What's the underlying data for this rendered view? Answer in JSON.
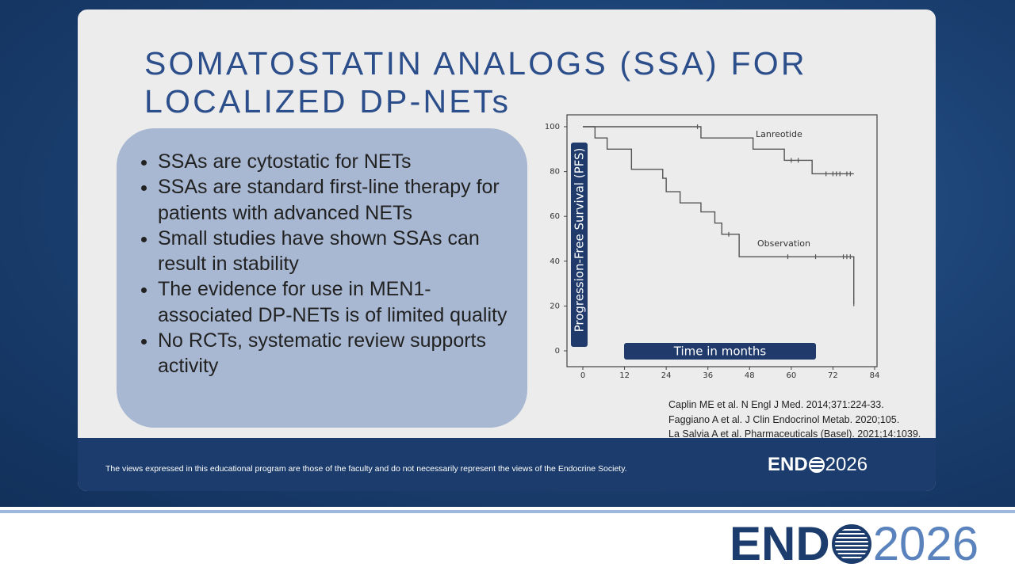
{
  "slide": {
    "title_lines": [
      "SOMATOSTATIN ANALOGS (SSA) FOR",
      "LOCALIZED DP-NETs"
    ],
    "bullets": [
      "SSAs are cytostatic for NETs",
      "SSAs are standard first-line therapy for patients with advanced NETs",
      "Small studies have shown SSAs can result in stability",
      "The evidence for use in MEN1-associated DP-NETs is of limited quality",
      "No RCTs, systematic review supports activity"
    ],
    "references": [
      "Caplin ME et al. N Engl J Med. 2014;371:224-33.",
      "Faggiano A et al. J Clin Endocrinol Metab. 2020;105.",
      "La Salvia A et al. Pharmaceuticals (Basel). 2021;14:1039."
    ],
    "footer": {
      "disclaimer": "The views expressed in this educational program are those of the faculty and do not necessarily represent the views of the Endocrine Society.",
      "logo_left": "END",
      "logo_right": "2026"
    }
  },
  "banner": {
    "logo_left": "END",
    "logo_right": "2026"
  },
  "chart_data": {
    "type": "kaplan-meier",
    "y_label": "Progression-Free Survival (PFS)",
    "x_label": "Time in months",
    "xlim": [
      0,
      84
    ],
    "xticks": [
      0,
      12,
      24,
      36,
      48,
      60,
      72,
      84
    ],
    "ylim": [
      0,
      100
    ],
    "yticks": [
      0,
      20,
      40,
      60,
      80,
      100
    ],
    "series": [
      {
        "name": "Lanreotide",
        "color": "#555555",
        "x": [
          0,
          34,
          49,
          58,
          66,
          78
        ],
        "values": [
          100,
          95,
          90,
          85,
          79,
          79
        ],
        "censor_x": [
          33,
          60,
          62,
          70,
          72,
          73,
          74,
          76,
          77
        ],
        "censor_values": [
          100,
          85,
          85,
          79,
          79,
          79,
          79,
          79,
          79
        ]
      },
      {
        "name": "Observation",
        "color": "#555555",
        "x": [
          0,
          3.5,
          7,
          14,
          23,
          24,
          28,
          34,
          38,
          40,
          45,
          78
        ],
        "values": [
          100,
          95,
          90,
          81,
          77,
          71,
          66,
          62,
          57,
          52,
          42,
          21
        ],
        "censor_x": [
          42,
          59,
          67,
          75,
          76,
          77,
          78
        ],
        "censor_values": [
          52,
          42,
          42,
          42,
          42,
          42,
          21
        ]
      }
    ]
  }
}
